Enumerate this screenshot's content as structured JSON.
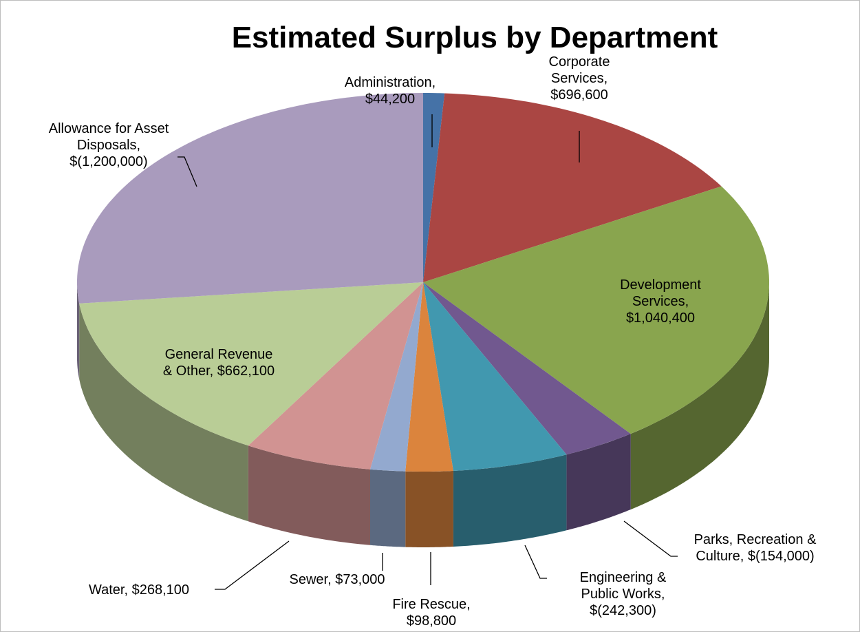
{
  "chart_data": {
    "type": "pie3d",
    "title": "Estimated Surplus by Department",
    "categories": [
      "Administration,",
      "Corporate Services,",
      "Development Services,",
      "Parks, Recreation & Culture,",
      "Engineering & Public Works,",
      "Fire Rescue,",
      "Sewer,",
      "Water,",
      "General Revenue & Other,",
      "Allowance for Asset Disposals,"
    ],
    "values": [
      44200,
      696600,
      1040400,
      -154000,
      -242300,
      98800,
      73000,
      268100,
      662100,
      -1200000
    ],
    "value_labels": [
      "$44,200",
      "$696,600",
      "$1,040,400",
      "$(154,000)",
      "$(242,300)",
      "$98,800",
      "$73,000",
      "$268,100",
      "$662,100",
      "$(1,200,000)"
    ],
    "colors": [
      "#4572a7",
      "#aa4643",
      "#89a54e",
      "#71588f",
      "#4198af",
      "#db843d",
      "#93a9cf",
      "#d19392",
      "#b9cd96",
      "#a99bbd"
    ]
  }
}
